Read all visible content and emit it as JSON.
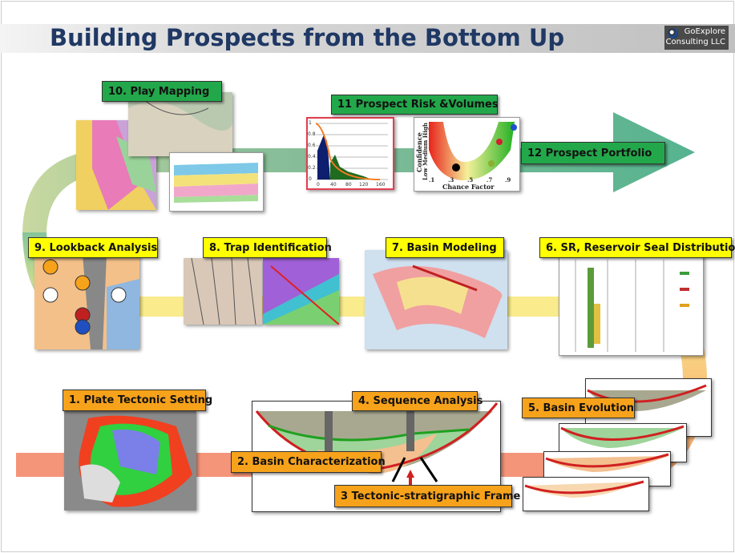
{
  "title": "Building Prospects from the Bottom Up",
  "logo": {
    "line1": "GoExplore",
    "line2": "Consulting  LLC"
  },
  "steps": {
    "s1": "1. Plate Tectonic Setting",
    "s2": "2. Basin Characterization",
    "s3": "3 Tectonic-stratigraphic Frame",
    "s4": "4. Sequence Analysis",
    "s5": "5. Basin Evolution",
    "s6": "6. SR, Reservoir Seal  Distribution",
    "s7": "7. Basin Modeling",
    "s8": "8. Trap Identification",
    "s9": "9. Lookback Analysis",
    "s10": "10. Play Mapping",
    "s11": "11 Prospect Risk &Volumes",
    "s12": "12 Prospect Portfolio"
  },
  "risk_plot": {
    "ylabel": "Confidence",
    "levels": "Low  Medium  High",
    "xlabel": "Chance Factor",
    "xticks": [
      ".1",
      ".3",
      ".5",
      ".7",
      ".9"
    ]
  },
  "histogram": {
    "xticks": [
      "0",
      "40",
      "80",
      "120",
      "160"
    ],
    "yticks": [
      "1",
      "0.8",
      "0.6",
      "0.4",
      "0.2",
      "0"
    ]
  },
  "colors": {
    "title": "#1f3864",
    "green_label": "#22a84a",
    "yellow_label": "#ffff00",
    "orange_label": "#f7a21b"
  }
}
